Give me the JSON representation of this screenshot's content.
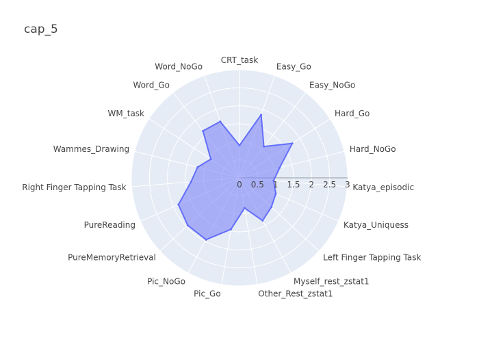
{
  "chart_data": {
    "type": "radar",
    "title": "cap_5",
    "categories": [
      "CRT_task",
      "Easy_Go",
      "Easy_NoGo",
      "Hard_Go",
      "Hard_NoGo",
      "Katya_episodic",
      "Katya_Uniquess",
      "Left Finger Tapping Task",
      "Myself_rest_zstat1",
      "Other_Rest_zstat1",
      "Pic_Go",
      "Pic_NoGo",
      "PureMemoryRetrieval",
      "PureReading",
      "Right Finger Tapping Task",
      "Wammes_Drawing",
      "WM_task",
      "Word_Go",
      "Word_NoGo"
    ],
    "series": [
      {
        "values": [
          0.9,
          1.85,
          1.1,
          1.75,
          1.15,
          0.95,
          1.1,
          1.2,
          1.35,
          0.85,
          1.45,
          1.95,
          1.95,
          1.85,
          1.35,
          1.2,
          0.95,
          1.65,
          1.65
        ]
      }
    ],
    "radial_range": [
      0,
      3
    ],
    "radial_ticks": [
      "0",
      "0.5",
      "1",
      "1.5",
      "2",
      "2.5",
      "3"
    ],
    "colors": {
      "fill": "#7d86f7",
      "line": "#636efa",
      "background": "#e5ecf6",
      "grid": "#ffffff"
    }
  }
}
